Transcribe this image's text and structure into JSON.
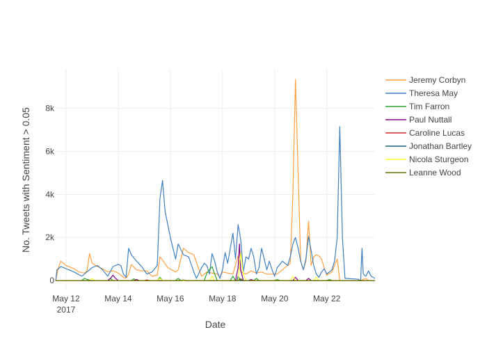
{
  "chart_data": {
    "type": "line",
    "title": "",
    "xlabel": "Date",
    "ylabel": "No. Tweets with Sentiment > 0.05",
    "x_range_days": [
      11.6,
      23.85
    ],
    "ylim": [
      -450,
      9800
    ],
    "x_ticks": [
      {
        "day": 12,
        "label": "May 12",
        "sublabel": "2017"
      },
      {
        "day": 14,
        "label": "May 14",
        "sublabel": ""
      },
      {
        "day": 16,
        "label": "May 16",
        "sublabel": ""
      },
      {
        "day": 18,
        "label": "May 18",
        "sublabel": ""
      },
      {
        "day": 20,
        "label": "May 20",
        "sublabel": ""
      },
      {
        "day": 22,
        "label": "May 22",
        "sublabel": ""
      }
    ],
    "y_ticks": [
      {
        "value": 0,
        "label": "0"
      },
      {
        "value": 2000,
        "label": "2k"
      },
      {
        "value": 4000,
        "label": "4k"
      },
      {
        "value": 6000,
        "label": "6k"
      },
      {
        "value": 8000,
        "label": "8k"
      }
    ],
    "grid": true,
    "legend_position": "right",
    "series": [
      {
        "name": "Jeremy Corbyn",
        "color": "#ff9f40",
        "points": [
          [
            11.6,
            0
          ],
          [
            11.7,
            550
          ],
          [
            11.8,
            900
          ],
          [
            12.0,
            700
          ],
          [
            12.3,
            550
          ],
          [
            12.5,
            400
          ],
          [
            12.7,
            350
          ],
          [
            12.8,
            450
          ],
          [
            12.9,
            1250
          ],
          [
            13.0,
            800
          ],
          [
            13.2,
            650
          ],
          [
            13.4,
            550
          ],
          [
            13.6,
            400
          ],
          [
            13.8,
            450
          ],
          [
            14.0,
            350
          ],
          [
            14.2,
            150
          ],
          [
            14.3,
            100
          ],
          [
            14.4,
            300
          ],
          [
            14.5,
            750
          ],
          [
            14.7,
            500
          ],
          [
            14.9,
            450
          ],
          [
            15.1,
            450
          ],
          [
            15.3,
            200
          ],
          [
            15.5,
            250
          ],
          [
            15.6,
            1100
          ],
          [
            15.7,
            950
          ],
          [
            15.9,
            600
          ],
          [
            16.2,
            400
          ],
          [
            16.3,
            500
          ],
          [
            16.5,
            1500
          ],
          [
            16.7,
            1300
          ],
          [
            16.9,
            1200
          ],
          [
            17.1,
            500
          ],
          [
            17.2,
            200
          ],
          [
            17.4,
            400
          ],
          [
            17.6,
            350
          ],
          [
            17.8,
            300
          ],
          [
            17.9,
            150
          ],
          [
            18.0,
            400
          ],
          [
            18.2,
            350
          ],
          [
            18.4,
            300
          ],
          [
            18.6,
            1150
          ],
          [
            18.7,
            400
          ],
          [
            18.9,
            300
          ],
          [
            19.1,
            450
          ],
          [
            19.3,
            350
          ],
          [
            19.5,
            400
          ],
          [
            19.7,
            300
          ],
          [
            19.9,
            300
          ],
          [
            20.1,
            300
          ],
          [
            20.3,
            500
          ],
          [
            20.5,
            700
          ],
          [
            20.6,
            800
          ],
          [
            20.7,
            4000
          ],
          [
            20.8,
            9350
          ],
          [
            20.9,
            5000
          ],
          [
            21.0,
            900
          ],
          [
            21.1,
            500
          ],
          [
            21.2,
            900
          ],
          [
            21.3,
            2750
          ],
          [
            21.4,
            700
          ],
          [
            21.5,
            1100
          ],
          [
            21.6,
            1200
          ],
          [
            21.7,
            1150
          ],
          [
            21.8,
            1000
          ],
          [
            21.9,
            600
          ],
          [
            22.0,
            250
          ],
          [
            22.2,
            400
          ],
          [
            22.3,
            700
          ],
          [
            22.4,
            1000
          ],
          [
            22.5,
            0
          ],
          [
            23.0,
            0
          ],
          [
            23.3,
            0
          ],
          [
            23.5,
            100
          ],
          [
            23.6,
            0
          ],
          [
            23.85,
            0
          ]
        ]
      },
      {
        "name": "Theresa May",
        "color": "#3f7fbf",
        "points": [
          [
            11.6,
            0
          ],
          [
            11.65,
            500
          ],
          [
            11.8,
            650
          ],
          [
            12.0,
            550
          ],
          [
            12.3,
            400
          ],
          [
            12.6,
            200
          ],
          [
            12.8,
            400
          ],
          [
            13.0,
            600
          ],
          [
            13.2,
            700
          ],
          [
            13.4,
            500
          ],
          [
            13.6,
            200
          ],
          [
            13.8,
            650
          ],
          [
            14.0,
            750
          ],
          [
            14.1,
            700
          ],
          [
            14.2,
            300
          ],
          [
            14.3,
            150
          ],
          [
            14.4,
            1500
          ],
          [
            14.5,
            1200
          ],
          [
            14.7,
            900
          ],
          [
            14.9,
            650
          ],
          [
            15.1,
            300
          ],
          [
            15.3,
            400
          ],
          [
            15.5,
            700
          ],
          [
            15.6,
            3800
          ],
          [
            15.7,
            4650
          ],
          [
            15.8,
            3200
          ],
          [
            16.0,
            2000
          ],
          [
            16.2,
            1000
          ],
          [
            16.3,
            1700
          ],
          [
            16.5,
            1200
          ],
          [
            16.7,
            1100
          ],
          [
            16.9,
            400
          ],
          [
            17.0,
            100
          ],
          [
            17.2,
            600
          ],
          [
            17.3,
            800
          ],
          [
            17.4,
            700
          ],
          [
            17.5,
            300
          ],
          [
            17.6,
            1250
          ],
          [
            17.7,
            900
          ],
          [
            17.8,
            400
          ],
          [
            17.9,
            100
          ],
          [
            18.0,
            500
          ],
          [
            18.1,
            1300
          ],
          [
            18.2,
            800
          ],
          [
            18.3,
            1500
          ],
          [
            18.4,
            2200
          ],
          [
            18.5,
            1000
          ],
          [
            18.6,
            2600
          ],
          [
            18.7,
            1900
          ],
          [
            18.8,
            400
          ],
          [
            18.9,
            1100
          ],
          [
            19.0,
            1000
          ],
          [
            19.1,
            1500
          ],
          [
            19.2,
            1100
          ],
          [
            19.3,
            300
          ],
          [
            19.4,
            600
          ],
          [
            19.5,
            1500
          ],
          [
            19.6,
            1000
          ],
          [
            19.7,
            500
          ],
          [
            19.8,
            900
          ],
          [
            19.9,
            500
          ],
          [
            20.0,
            200
          ],
          [
            20.1,
            600
          ],
          [
            20.3,
            900
          ],
          [
            20.5,
            700
          ],
          [
            20.6,
            1100
          ],
          [
            20.7,
            1700
          ],
          [
            20.8,
            2000
          ],
          [
            20.9,
            1500
          ],
          [
            21.0,
            900
          ],
          [
            21.1,
            500
          ],
          [
            21.2,
            1000
          ],
          [
            21.3,
            2050
          ],
          [
            21.4,
            1400
          ],
          [
            21.5,
            700
          ],
          [
            21.6,
            300
          ],
          [
            21.7,
            150
          ],
          [
            21.8,
            400
          ],
          [
            21.9,
            550
          ],
          [
            22.0,
            300
          ],
          [
            22.2,
            500
          ],
          [
            22.3,
            900
          ],
          [
            22.4,
            2000
          ],
          [
            22.5,
            7150
          ],
          [
            22.6,
            2000
          ],
          [
            22.7,
            100
          ],
          [
            23.0,
            80
          ],
          [
            23.2,
            60
          ],
          [
            23.3,
            0
          ],
          [
            23.35,
            1500
          ],
          [
            23.4,
            300
          ],
          [
            23.5,
            200
          ],
          [
            23.6,
            450
          ],
          [
            23.7,
            200
          ],
          [
            23.85,
            100
          ]
        ]
      },
      {
        "name": "Tim Farron",
        "color": "#2ca02c",
        "points": [
          [
            11.6,
            0
          ],
          [
            12.6,
            0
          ],
          [
            12.7,
            100
          ],
          [
            12.8,
            50
          ],
          [
            13.0,
            0
          ],
          [
            13.6,
            0
          ],
          [
            13.7,
            100
          ],
          [
            13.8,
            0
          ],
          [
            14.5,
            0
          ],
          [
            14.6,
            80
          ],
          [
            14.7,
            0
          ],
          [
            15.5,
            0
          ],
          [
            15.6,
            150
          ],
          [
            15.7,
            0
          ],
          [
            16.2,
            0
          ],
          [
            16.3,
            100
          ],
          [
            16.4,
            0
          ],
          [
            17.3,
            0
          ],
          [
            17.4,
            350
          ],
          [
            17.5,
            500
          ],
          [
            17.6,
            650
          ],
          [
            17.7,
            300
          ],
          [
            17.8,
            0
          ],
          [
            18.3,
            0
          ],
          [
            18.4,
            200
          ],
          [
            18.5,
            0
          ],
          [
            19.2,
            0
          ],
          [
            19.3,
            100
          ],
          [
            19.4,
            0
          ],
          [
            20.0,
            0
          ],
          [
            20.1,
            50
          ],
          [
            20.2,
            0
          ],
          [
            22.0,
            0
          ],
          [
            22.1,
            50
          ],
          [
            22.2,
            0
          ],
          [
            23.85,
            0
          ]
        ]
      },
      {
        "name": "Paul Nuttall",
        "color": "#800080",
        "points": [
          [
            11.6,
            0
          ],
          [
            13.6,
            0
          ],
          [
            13.7,
            100
          ],
          [
            13.8,
            250
          ],
          [
            13.9,
            100
          ],
          [
            14.0,
            0
          ],
          [
            14.6,
            0
          ],
          [
            14.7,
            50
          ],
          [
            14.8,
            0
          ],
          [
            18.5,
            0
          ],
          [
            18.6,
            600
          ],
          [
            18.65,
            1700
          ],
          [
            18.7,
            500
          ],
          [
            18.8,
            0
          ],
          [
            19.0,
            0
          ],
          [
            19.1,
            50
          ],
          [
            19.2,
            0
          ],
          [
            20.7,
            0
          ],
          [
            20.8,
            150
          ],
          [
            20.9,
            0
          ],
          [
            21.2,
            0
          ],
          [
            21.3,
            100
          ],
          [
            21.4,
            0
          ],
          [
            23.85,
            0
          ]
        ]
      },
      {
        "name": "Caroline Lucas",
        "color": "#d62728",
        "points": [
          [
            11.6,
            0
          ],
          [
            15.0,
            0
          ],
          [
            15.1,
            30
          ],
          [
            15.2,
            0
          ],
          [
            18.6,
            0
          ],
          [
            18.7,
            50
          ],
          [
            18.8,
            0
          ],
          [
            23.85,
            0
          ]
        ]
      },
      {
        "name": "Jonathan Bartley",
        "color": "#17607f",
        "points": [
          [
            11.6,
            0
          ],
          [
            18.55,
            0
          ],
          [
            18.6,
            200
          ],
          [
            18.7,
            0
          ],
          [
            23.85,
            0
          ]
        ]
      },
      {
        "name": "Nicola Sturgeon",
        "color": "#ffff33",
        "points": [
          [
            11.6,
            0
          ],
          [
            12.9,
            0
          ],
          [
            13.0,
            100
          ],
          [
            13.1,
            0
          ],
          [
            15.5,
            0
          ],
          [
            15.6,
            100
          ],
          [
            15.7,
            0
          ],
          [
            17.5,
            0
          ],
          [
            17.6,
            200
          ],
          [
            17.7,
            0
          ],
          [
            18.6,
            0
          ],
          [
            18.7,
            1300
          ],
          [
            18.8,
            300
          ],
          [
            18.9,
            0
          ],
          [
            20.6,
            0
          ],
          [
            20.7,
            200
          ],
          [
            20.8,
            0
          ],
          [
            21.5,
            0
          ],
          [
            21.6,
            150
          ],
          [
            21.7,
            0
          ],
          [
            23.85,
            0
          ]
        ]
      },
      {
        "name": "Leanne Wood",
        "color": "#6b6b00",
        "points": [
          [
            11.6,
            0
          ],
          [
            16.4,
            0
          ],
          [
            16.5,
            30
          ],
          [
            16.6,
            0
          ],
          [
            18.6,
            0
          ],
          [
            18.7,
            80
          ],
          [
            18.8,
            0
          ],
          [
            23.85,
            0
          ]
        ]
      }
    ]
  }
}
